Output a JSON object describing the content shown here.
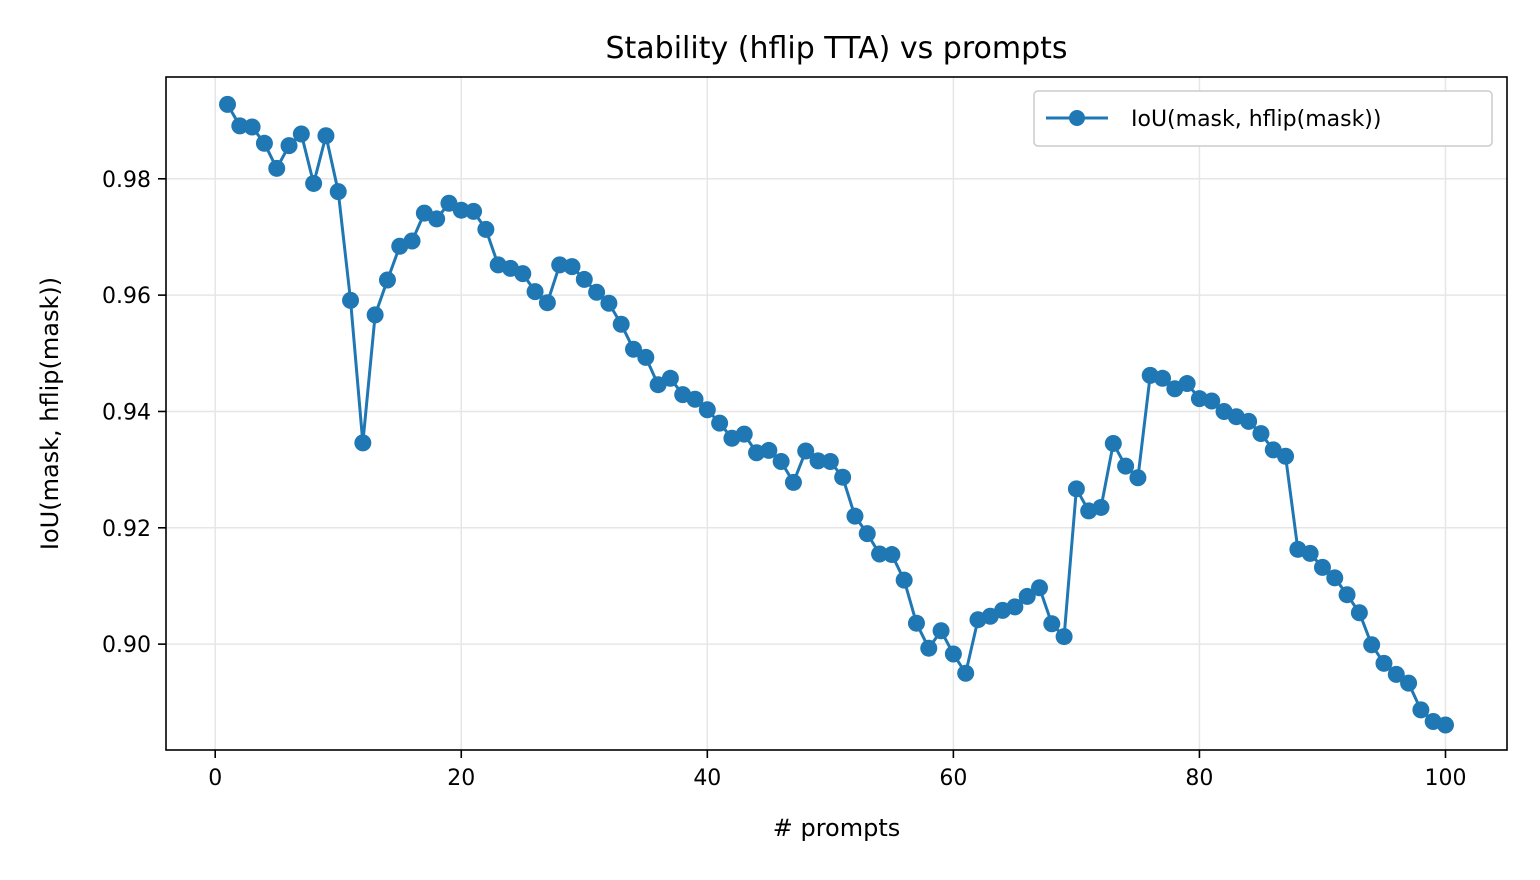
{
  "chart_data": {
    "type": "line",
    "title": "Stability (hflip TTA) vs prompts",
    "xlabel": "# prompts",
    "ylabel": "IoU(mask, hflip(mask))",
    "xlim": [
      -4,
      105
    ],
    "ylim": [
      0.8818,
      0.9975
    ],
    "xticks": [
      0,
      20,
      40,
      60,
      80,
      100
    ],
    "yticks": [
      0.9,
      0.92,
      0.94,
      0.96,
      0.98
    ],
    "xtick_labels": [
      "0",
      "20",
      "40",
      "60",
      "80",
      "100"
    ],
    "ytick_labels": [
      "0.90",
      "0.92",
      "0.94",
      "0.96",
      "0.98"
    ],
    "grid": true,
    "legend_position": "top-right",
    "series": [
      {
        "name": "IoU(mask, hflip(mask))",
        "color": "#1f77b4",
        "marker": "circle",
        "x": [
          1,
          2,
          3,
          4,
          5,
          6,
          7,
          8,
          9,
          10,
          11,
          12,
          13,
          14,
          15,
          16,
          17,
          18,
          19,
          20,
          21,
          22,
          23,
          24,
          25,
          26,
          27,
          28,
          29,
          30,
          31,
          32,
          33,
          34,
          35,
          36,
          37,
          38,
          39,
          40,
          41,
          42,
          43,
          44,
          45,
          46,
          47,
          48,
          49,
          50,
          51,
          52,
          53,
          54,
          55,
          56,
          57,
          58,
          59,
          60,
          61,
          62,
          63,
          64,
          65,
          66,
          67,
          68,
          69,
          70,
          71,
          72,
          73,
          74,
          75,
          76,
          77,
          78,
          79,
          80,
          81,
          82,
          83,
          84,
          85,
          86,
          87,
          88,
          89,
          90,
          91,
          92,
          93,
          94,
          95,
          96,
          97,
          98,
          99,
          100
        ],
        "y": [
          0.9928,
          0.9891,
          0.9889,
          0.9861,
          0.9818,
          0.9857,
          0.9877,
          0.9792,
          0.9874,
          0.9778,
          0.9591,
          0.9346,
          0.9566,
          0.9626,
          0.9684,
          0.9693,
          0.9741,
          0.9731,
          0.9758,
          0.9746,
          0.9744,
          0.9713,
          0.9652,
          0.9646,
          0.9637,
          0.9606,
          0.9587,
          0.9652,
          0.9649,
          0.9627,
          0.9605,
          0.9586,
          0.955,
          0.9507,
          0.9493,
          0.9446,
          0.9457,
          0.9429,
          0.9421,
          0.9403,
          0.938,
          0.9354,
          0.9361,
          0.9329,
          0.9333,
          0.9314,
          0.9278,
          0.9332,
          0.9315,
          0.9314,
          0.9287,
          0.922,
          0.919,
          0.9155,
          0.9154,
          0.911,
          0.9036,
          0.8993,
          0.9023,
          0.8983,
          0.895,
          0.9042,
          0.9048,
          0.9058,
          0.9064,
          0.9082,
          0.9097,
          0.9035,
          0.9013,
          0.9267,
          0.9229,
          0.9235,
          0.9345,
          0.9306,
          0.9286,
          0.9462,
          0.9457,
          0.9439,
          0.9448,
          0.9422,
          0.9418,
          0.94,
          0.9391,
          0.9383,
          0.9362,
          0.9334,
          0.9323,
          0.9163,
          0.9156,
          0.9132,
          0.9114,
          0.9085,
          0.9054,
          0.8999,
          0.8967,
          0.8948,
          0.8933,
          0.8887,
          0.8867,
          0.8861
        ]
      }
    ]
  }
}
